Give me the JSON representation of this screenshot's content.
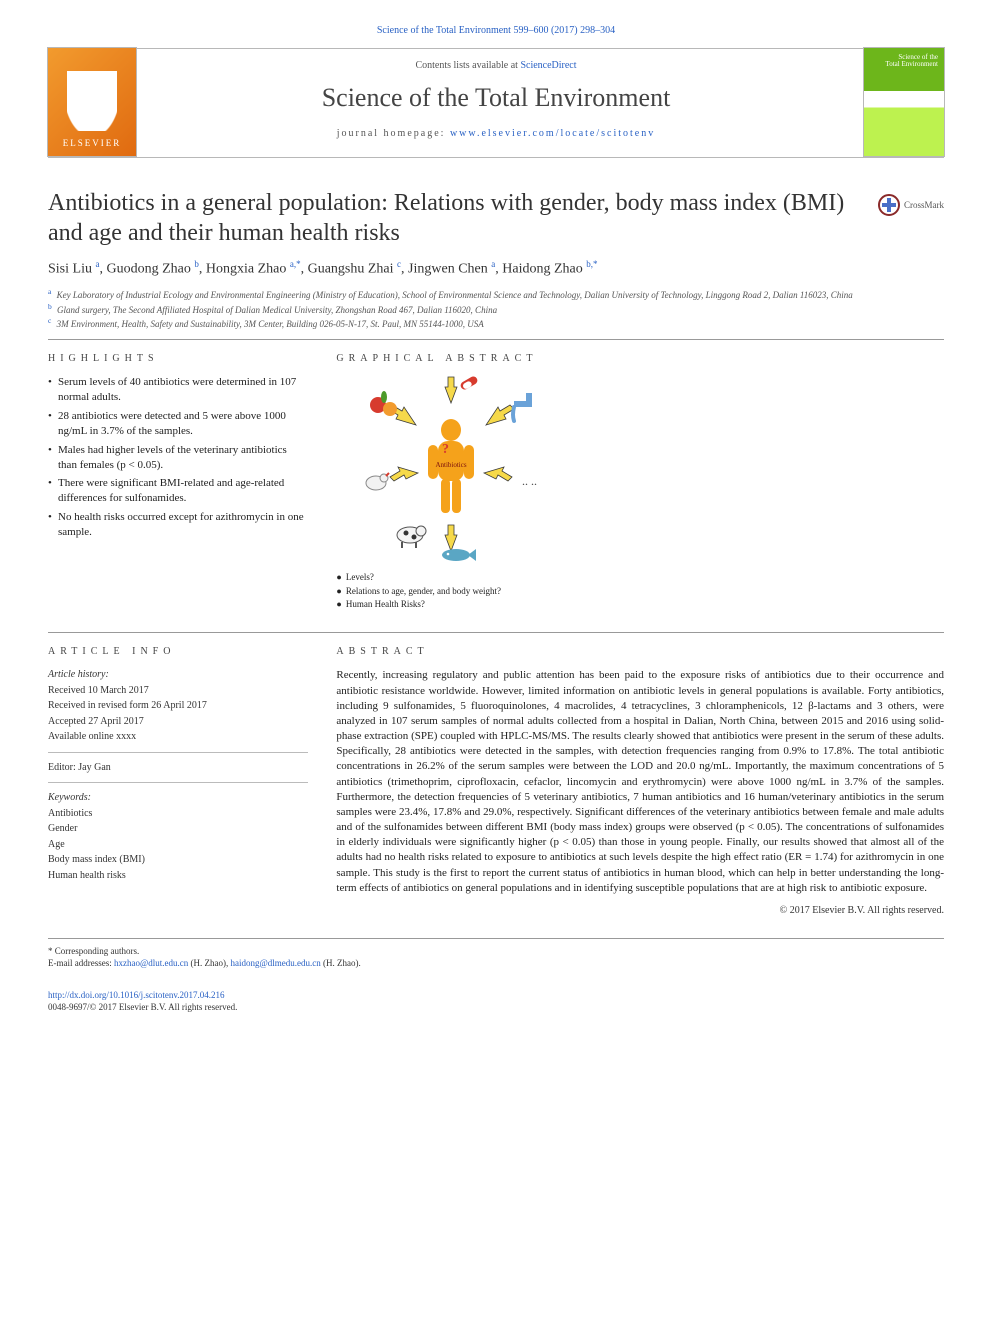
{
  "top_ref": "Science of the Total Environment 599–600 (2017) 298–304",
  "header": {
    "contents_prefix": "Contents lists available at ",
    "sciencedirect": "ScienceDirect",
    "journal": "Science of the Total Environment",
    "homepage_label": "journal homepage: ",
    "homepage_url": "www.elsevier.com/locate/scitotenv",
    "elsevier_label": "ELSEVIER",
    "cover_label_top": "Science of the",
    "cover_label_bot": "Total Environment"
  },
  "title": "Antibiotics in a general population: Relations with gender, body mass index (BMI) and age and their human health risks",
  "crossmark": "CrossMark",
  "authors_html": "Sisi Liu <sup>a</sup>, Guodong Zhao <sup>b</sup>, Hongxia Zhao <sup>a,*</sup>, Guangshu Zhai <sup>c</sup>, Jingwen Chen <sup>a</sup>, Haidong Zhao <sup>b,*</sup>",
  "affiliations": [
    {
      "sup": "a",
      "text": "Key Laboratory of Industrial Ecology and Environmental Engineering (Ministry of Education), School of Environmental Science and Technology, Dalian University of Technology, Linggong Road 2, Dalian 116023, China"
    },
    {
      "sup": "b",
      "text": "Gland surgery, The Second Affiliated Hospital of Dalian Medical University, Zhongshan Road 467, Dalian 116020, China"
    },
    {
      "sup": "c",
      "text": "3M Environment, Health, Safety and Sustainability, 3M Center, Building 026-05-N-17, St. Paul, MN 55144-1000, USA"
    }
  ],
  "highlights": {
    "label": "HIGHLIGHTS",
    "items": [
      "Serum levels of 40 antibiotics were determined in 107 normal adults.",
      "28 antibiotics were detected and 5 were above 1000 ng/mL in 3.7% of the samples.",
      "Males had higher levels of the veterinary antibiotics than females (p < 0.05).",
      "There were significant BMI-related and age-related differences for sulfonamides.",
      "No health risks occurred except for azithromycin in one sample."
    ]
  },
  "graphical_abstract": {
    "label": "GRAPHICAL ABSTRACT",
    "caption_lines": [
      "Levels?",
      "Relations to age, gender, and body weight?",
      "Human Health Risks?"
    ],
    "figure": {
      "icons": [
        "fruit",
        "pill",
        "tap",
        "chicken",
        "cow",
        "fish",
        "dots"
      ],
      "center_label": "Antibiotics",
      "arrows": 6,
      "silhouette_color": "#f5a21b",
      "arrow_fill": "#f6d94a",
      "arrow_stroke": "#3a3a3a"
    }
  },
  "article_info": {
    "label": "ARTICLE INFO",
    "history_hdr": "Article history:",
    "history": [
      "Received 10 March 2017",
      "Received in revised form 26 April 2017",
      "Accepted 27 April 2017",
      "Available online xxxx"
    ],
    "editor": "Editor: Jay Gan",
    "keywords_hdr": "Keywords:",
    "keywords": [
      "Antibiotics",
      "Gender",
      "Age",
      "Body mass index (BMI)",
      "Human health risks"
    ]
  },
  "abstract": {
    "label": "ABSTRACT",
    "text": "Recently, increasing regulatory and public attention has been paid to the exposure risks of antibiotics due to their occurrence and antibiotic resistance worldwide. However, limited information on antibiotic levels in general populations is available. Forty antibiotics, including 9 sulfonamides, 5 fluoroquinolones, 4 macrolides, 4 tetracyclines, 3 chloramphenicols, 12 β-lactams and 3 others, were analyzed in 107 serum samples of normal adults collected from a hospital in Dalian, North China, between 2015 and 2016 using solid-phase extraction (SPE) coupled with HPLC-MS/MS. The results clearly showed that antibiotics were present in the serum of these adults. Specifically, 28 antibiotics were detected in the samples, with detection frequencies ranging from 0.9% to 17.8%. The total antibiotic concentrations in 26.2% of the serum samples were between the LOD and 20.0 ng/mL. Importantly, the maximum concentrations of 5 antibiotics (trimethoprim, ciprofloxacin, cefaclor, lincomycin and erythromycin) were above 1000 ng/mL in 3.7% of the samples. Furthermore, the detection frequencies of 5 veterinary antibiotics, 7 human antibiotics and 16 human/veterinary antibiotics in the serum samples were 23.4%, 17.8% and 29.0%, respectively. Significant differences of the veterinary antibiotics between female and male adults and of the sulfonamides between different BMI (body mass index) groups were observed (p < 0.05). The concentrations of sulfonamides in elderly individuals were significantly higher (p < 0.05) than those in young people. Finally, our results showed that almost all of the adults had no health risks related to exposure to antibiotics at such levels despite the high effect ratio (ER = 1.74) for azithromycin in one sample. This study is the first to report the current status of antibiotics in human blood, which can help in better understanding the long-term effects of antibiotics on general populations and in identifying susceptible populations that are at high risk to antibiotic exposure.",
    "copyright": "© 2017 Elsevier B.V. All rights reserved."
  },
  "corresponding": {
    "star": "* Corresponding authors.",
    "label": "E-mail addresses: ",
    "emails": [
      {
        "addr": "hxzhao@dlut.edu.cn",
        "who": "(H. Zhao)"
      },
      {
        "addr": "haidong@dlmedu.edu.cn",
        "who": "(H. Zhao)"
      }
    ]
  },
  "doi": {
    "url": "http://dx.doi.org/10.1016/j.scitotenv.2017.04.216",
    "issn_line": "0048-9697/© 2017 Elsevier B.V. All rights reserved."
  },
  "colors": {
    "link": "#2961c4",
    "text": "#222222",
    "rule": "#999999",
    "elsevier_bg": "#e77817"
  }
}
